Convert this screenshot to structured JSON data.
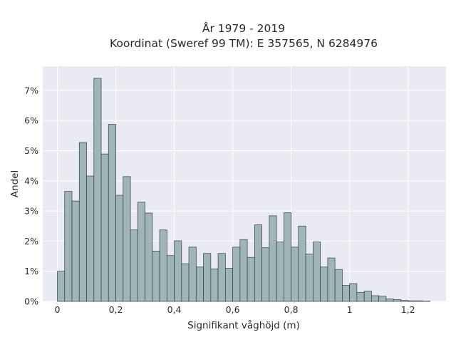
{
  "chart_data": {
    "type": "bar",
    "title": "År 1979 - 2019",
    "subtitle": "Koordinat (Sweref 99 TM): E 357565, N 6284976",
    "xlabel": "Signifikant våghöjd (m)",
    "ylabel": "Andel",
    "xlim": [
      -0.05,
      1.33
    ],
    "ylim": [
      0,
      0.078
    ],
    "x_ticks": [
      0,
      0.2,
      0.4,
      0.6,
      0.8,
      1,
      1.2
    ],
    "x_tick_labels": [
      "0",
      "0,2",
      "0,4",
      "0,6",
      "0,8",
      "1",
      "1,2"
    ],
    "y_ticks": [
      0,
      0.01,
      0.02,
      0.03,
      0.04,
      0.05,
      0.06,
      0.07
    ],
    "y_tick_labels": [
      "0%",
      "1%",
      "2%",
      "3%",
      "4%",
      "5%",
      "6%",
      "7%"
    ],
    "grid": true,
    "bin_width": 0.025,
    "x": [
      0.0125,
      0.0375,
      0.0625,
      0.0875,
      0.1125,
      0.1375,
      0.1625,
      0.1875,
      0.2125,
      0.2375,
      0.2625,
      0.2875,
      0.3125,
      0.3375,
      0.3625,
      0.3875,
      0.4125,
      0.4375,
      0.4625,
      0.4875,
      0.5125,
      0.5375,
      0.5625,
      0.5875,
      0.6125,
      0.6375,
      0.6625,
      0.6875,
      0.7125,
      0.7375,
      0.7625,
      0.7875,
      0.8125,
      0.8375,
      0.8625,
      0.8875,
      0.9125,
      0.9375,
      0.9625,
      0.9875,
      1.0125,
      1.0375,
      1.0625,
      1.0875,
      1.1125,
      1.1375,
      1.1625,
      1.1875,
      1.2125,
      1.2375,
      1.2625
    ],
    "values": [
      0.01,
      0.0365,
      0.0333,
      0.0527,
      0.0416,
      0.074,
      0.0489,
      0.0587,
      0.0352,
      0.0414,
      0.0237,
      0.0329,
      0.0293,
      0.0167,
      0.0237,
      0.0152,
      0.0201,
      0.0125,
      0.018,
      0.0114,
      0.0159,
      0.0108,
      0.0159,
      0.011,
      0.018,
      0.0205,
      0.0146,
      0.0254,
      0.0178,
      0.0284,
      0.0197,
      0.0294,
      0.018,
      0.025,
      0.0157,
      0.0197,
      0.0114,
      0.0144,
      0.0106,
      0.0053,
      0.0059,
      0.003,
      0.0034,
      0.0019,
      0.0017,
      0.0008,
      0.0006,
      0.0003,
      0.0002,
      0.0002,
      0.0001
    ]
  }
}
